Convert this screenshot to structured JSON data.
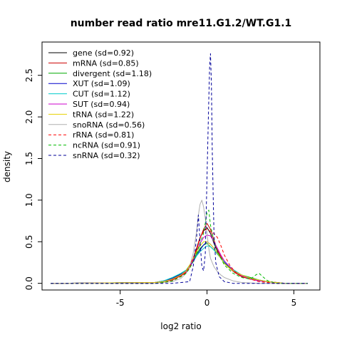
{
  "chart_data": {
    "type": "line",
    "title": "number read ratio mre11.G1.2/WT.G1.1",
    "xlabel": "log2 ratio",
    "ylabel": "density",
    "xlim": [
      -9.5,
      6.5
    ],
    "ylim": [
      -0.08,
      2.9
    ],
    "x_ticks": [
      -5,
      0,
      5
    ],
    "x_tick_labels": [
      "-5",
      "0",
      "5"
    ],
    "y_ticks": [
      0.0,
      0.5,
      1.0,
      1.5,
      2.0,
      2.5
    ],
    "y_tick_labels": [
      "0.0",
      "0.5",
      "1.0",
      "1.5",
      "2.0",
      "2.5"
    ],
    "grid": false,
    "legend_position": "top-left",
    "series": [
      {
        "name": "gene (sd=0.92)",
        "color": "#000000",
        "dash": "solid",
        "x": [
          -9.0,
          -3.0,
          -2.5,
          -2.0,
          -1.5,
          -1.2,
          -1.0,
          -0.8,
          -0.6,
          -0.4,
          -0.2,
          0.0,
          0.2,
          0.4,
          0.6,
          0.8,
          1.0,
          1.3,
          1.6,
          2.0,
          2.5,
          3.0,
          3.5,
          4.0,
          4.5,
          5.8
        ],
        "y": [
          0.0,
          0.01,
          0.02,
          0.05,
          0.1,
          0.14,
          0.2,
          0.3,
          0.42,
          0.55,
          0.63,
          0.67,
          0.6,
          0.48,
          0.38,
          0.3,
          0.24,
          0.18,
          0.13,
          0.08,
          0.05,
          0.03,
          0.02,
          0.01,
          0.0,
          0.0
        ]
      },
      {
        "name": "mRNA (sd=0.85)",
        "color": "#cc0000",
        "dash": "solid",
        "x": [
          -9.0,
          -3.0,
          -2.5,
          -2.0,
          -1.5,
          -1.2,
          -1.0,
          -0.8,
          -0.6,
          -0.4,
          -0.2,
          0.0,
          0.2,
          0.4,
          0.6,
          0.8,
          1.0,
          1.3,
          1.6,
          2.0,
          2.5,
          3.0,
          3.5,
          4.0,
          4.5,
          5.8
        ],
        "y": [
          0.0,
          0.01,
          0.02,
          0.04,
          0.09,
          0.13,
          0.19,
          0.28,
          0.4,
          0.54,
          0.65,
          0.72,
          0.65,
          0.52,
          0.4,
          0.32,
          0.25,
          0.18,
          0.13,
          0.08,
          0.05,
          0.03,
          0.02,
          0.01,
          0.0,
          0.0
        ]
      },
      {
        "name": "divergent (sd=1.18)",
        "color": "#00aa00",
        "dash": "solid",
        "x": [
          -9.0,
          -3.0,
          -2.5,
          -2.0,
          -1.5,
          -1.2,
          -1.0,
          -0.8,
          -0.6,
          -0.4,
          -0.2,
          0.0,
          0.2,
          0.4,
          0.6,
          0.8,
          1.0,
          1.3,
          1.6,
          2.0,
          2.5,
          3.0,
          3.5,
          4.0,
          4.5,
          5.8
        ],
        "y": [
          0.0,
          0.01,
          0.03,
          0.06,
          0.12,
          0.16,
          0.22,
          0.28,
          0.35,
          0.42,
          0.46,
          0.48,
          0.44,
          0.4,
          0.35,
          0.3,
          0.24,
          0.19,
          0.15,
          0.1,
          0.07,
          0.04,
          0.02,
          0.01,
          0.0,
          0.0
        ]
      },
      {
        "name": "XUT (sd=1.09)",
        "color": "#0000cc",
        "dash": "solid",
        "x": [
          -9.0,
          -3.0,
          -2.5,
          -2.0,
          -1.5,
          -1.2,
          -1.0,
          -0.8,
          -0.6,
          -0.4,
          -0.2,
          0.0,
          0.2,
          0.4,
          0.6,
          0.8,
          1.0,
          1.3,
          1.6,
          2.0,
          2.5,
          3.0,
          3.5,
          4.0,
          4.5,
          5.8
        ],
        "y": [
          0.0,
          0.01,
          0.03,
          0.06,
          0.11,
          0.15,
          0.2,
          0.26,
          0.33,
          0.4,
          0.46,
          0.5,
          0.47,
          0.42,
          0.36,
          0.3,
          0.25,
          0.2,
          0.15,
          0.1,
          0.06,
          0.04,
          0.02,
          0.01,
          0.0,
          0.0
        ]
      },
      {
        "name": "CUT (sd=1.12)",
        "color": "#00cccc",
        "dash": "solid",
        "x": [
          -9.0,
          -3.0,
          -2.5,
          -2.0,
          -1.5,
          -1.2,
          -1.0,
          -0.8,
          -0.6,
          -0.4,
          -0.2,
          0.0,
          0.2,
          0.4,
          0.6,
          0.8,
          1.0,
          1.3,
          1.6,
          2.0,
          2.5,
          3.0,
          3.5,
          4.0,
          4.5,
          5.8
        ],
        "y": [
          0.0,
          0.01,
          0.03,
          0.07,
          0.12,
          0.16,
          0.21,
          0.27,
          0.33,
          0.38,
          0.42,
          0.45,
          0.44,
          0.4,
          0.35,
          0.3,
          0.26,
          0.2,
          0.15,
          0.1,
          0.06,
          0.04,
          0.02,
          0.01,
          0.0,
          0.0
        ]
      },
      {
        "name": "SUT (sd=0.94)",
        "color": "#cc00cc",
        "dash": "solid",
        "x": [
          -9.0,
          -3.0,
          -2.5,
          -2.0,
          -1.5,
          -1.2,
          -1.0,
          -0.8,
          -0.6,
          -0.4,
          -0.2,
          0.0,
          0.2,
          0.4,
          0.6,
          0.8,
          1.0,
          1.3,
          1.6,
          2.0,
          2.5,
          3.0,
          3.5,
          4.0,
          4.5,
          5.8
        ],
        "y": [
          0.0,
          0.01,
          0.02,
          0.05,
          0.1,
          0.14,
          0.2,
          0.28,
          0.38,
          0.48,
          0.55,
          0.58,
          0.57,
          0.5,
          0.42,
          0.34,
          0.27,
          0.2,
          0.14,
          0.09,
          0.05,
          0.03,
          0.02,
          0.01,
          0.0,
          0.0
        ]
      },
      {
        "name": "tRNA (sd=1.22)",
        "color": "#e6d000",
        "dash": "solid",
        "x": [
          -9.0,
          -3.0,
          -2.5,
          -2.0,
          -1.5,
          -1.2,
          -1.0,
          -0.8,
          -0.6,
          -0.4,
          -0.2,
          0.0,
          0.2,
          0.4,
          0.6,
          0.8,
          1.0,
          1.3,
          1.6,
          2.0,
          2.5,
          3.0,
          3.5,
          4.0,
          4.5,
          5.8
        ],
        "y": [
          0.0,
          0.01,
          0.02,
          0.05,
          0.1,
          0.15,
          0.22,
          0.3,
          0.38,
          0.45,
          0.5,
          0.5,
          0.47,
          0.42,
          0.36,
          0.3,
          0.24,
          0.18,
          0.14,
          0.1,
          0.06,
          0.04,
          0.02,
          0.01,
          0.0,
          0.0
        ]
      },
      {
        "name": "snoRNA (sd=0.56)",
        "color": "#b0b0b0",
        "dash": "solid",
        "x": [
          -9.0,
          -3.0,
          -2.0,
          -1.5,
          -1.2,
          -1.0,
          -0.8,
          -0.6,
          -0.5,
          -0.4,
          -0.3,
          -0.2,
          -0.1,
          0.0,
          0.1,
          0.2,
          0.4,
          0.6,
          0.8,
          1.0,
          1.5,
          2.0,
          3.0,
          5.8
        ],
        "y": [
          0.0,
          0.0,
          0.02,
          0.06,
          0.12,
          0.2,
          0.36,
          0.62,
          0.82,
          0.95,
          1.0,
          0.92,
          0.78,
          0.6,
          0.42,
          0.3,
          0.2,
          0.14,
          0.1,
          0.07,
          0.03,
          0.01,
          0.0,
          0.0
        ]
      },
      {
        "name": "rRNA (sd=0.81)",
        "color": "#ff0000",
        "dash": "dashed",
        "x": [
          -9.0,
          -3.0,
          -2.5,
          -2.0,
          -1.5,
          -1.2,
          -1.0,
          -0.8,
          -0.6,
          -0.4,
          -0.2,
          0.0,
          0.2,
          0.4,
          0.6,
          0.8,
          1.0,
          1.3,
          1.6,
          2.0,
          2.5,
          3.0,
          3.5,
          4.0,
          4.5,
          5.8
        ],
        "y": [
          0.0,
          0.0,
          0.01,
          0.03,
          0.08,
          0.14,
          0.2,
          0.3,
          0.42,
          0.55,
          0.62,
          0.66,
          0.62,
          0.6,
          0.55,
          0.45,
          0.34,
          0.22,
          0.14,
          0.08,
          0.05,
          0.02,
          0.01,
          0.0,
          0.0,
          0.0
        ]
      },
      {
        "name": "ncRNA (sd=0.91)",
        "color": "#00bb00",
        "dash": "dashed",
        "x": [
          -9.0,
          -3.0,
          -2.5,
          -2.0,
          -1.5,
          -1.2,
          -1.0,
          -0.8,
          -0.6,
          -0.4,
          -0.2,
          0.0,
          0.1,
          0.2,
          0.4,
          0.6,
          0.8,
          1.0,
          1.5,
          2.0,
          2.5,
          2.8,
          3.0,
          3.2,
          3.5,
          4.0,
          5.8
        ],
        "y": [
          0.0,
          0.0,
          0.01,
          0.03,
          0.08,
          0.12,
          0.18,
          0.26,
          0.36,
          0.48,
          0.6,
          0.85,
          0.88,
          0.7,
          0.5,
          0.38,
          0.3,
          0.22,
          0.12,
          0.07,
          0.05,
          0.1,
          0.12,
          0.08,
          0.03,
          0.0,
          0.0
        ]
      },
      {
        "name": "snRNA (sd=0.32)",
        "color": "#000099",
        "dash": "dashed",
        "x": [
          -9.0,
          -2.0,
          -1.0,
          -0.8,
          -0.6,
          -0.5,
          -0.4,
          -0.3,
          -0.2,
          -0.1,
          0.0,
          0.1,
          0.15,
          0.2,
          0.25,
          0.3,
          0.4,
          0.5,
          0.7,
          1.0,
          1.5,
          5.8
        ],
        "y": [
          0.0,
          0.0,
          0.02,
          0.2,
          0.55,
          0.82,
          0.5,
          0.2,
          0.15,
          0.35,
          1.3,
          2.2,
          2.6,
          2.76,
          2.4,
          1.6,
          0.6,
          0.25,
          0.08,
          0.02,
          0.0,
          0.0
        ]
      }
    ]
  }
}
